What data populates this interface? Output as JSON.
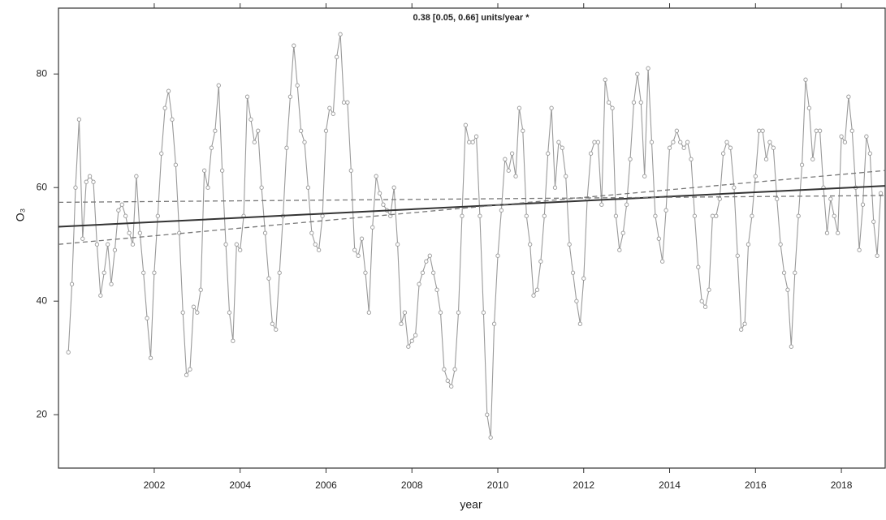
{
  "chart_data": {
    "type": "line",
    "title": "0.38 [0.05, 0.66] units/year *",
    "x_label": "year",
    "y_label": "O₃",
    "color": "#9a9a9a",
    "marker": "circle",
    "xlim": [
      1999.77,
      2019.02
    ],
    "ylim": [
      10.6,
      91.6
    ],
    "xticks": [
      2002,
      2004,
      2006,
      2008,
      2010,
      2012,
      2014,
      2016,
      2018
    ],
    "yticks": [
      20,
      40,
      60,
      80
    ],
    "x": [
      2000,
      2000.083,
      2000.167,
      2000.25,
      2000.333,
      2000.417,
      2000.5,
      2000.583,
      2000.667,
      2000.75,
      2000.833,
      2000.917,
      2001,
      2001.083,
      2001.167,
      2001.25,
      2001.333,
      2001.417,
      2001.5,
      2001.583,
      2001.667,
      2001.75,
      2001.833,
      2001.917,
      2002,
      2002.083,
      2002.167,
      2002.25,
      2002.333,
      2002.417,
      2002.5,
      2002.583,
      2002.667,
      2002.75,
      2002.833,
      2002.917,
      2003,
      2003.083,
      2003.167,
      2003.25,
      2003.333,
      2003.417,
      2003.5,
      2003.583,
      2003.667,
      2003.75,
      2003.833,
      2003.917,
      2004,
      2004.083,
      2004.167,
      2004.25,
      2004.333,
      2004.417,
      2004.5,
      2004.583,
      2004.667,
      2004.75,
      2004.833,
      2004.917,
      2005,
      2005.083,
      2005.167,
      2005.25,
      2005.333,
      2005.417,
      2005.5,
      2005.583,
      2005.667,
      2005.75,
      2005.833,
      2005.917,
      2006,
      2006.083,
      2006.167,
      2006.25,
      2006.333,
      2006.417,
      2006.5,
      2006.583,
      2006.667,
      2006.75,
      2006.833,
      2006.917,
      2007,
      2007.083,
      2007.167,
      2007.25,
      2007.333,
      2007.417,
      2007.5,
      2007.583,
      2007.667,
      2007.75,
      2007.833,
      2007.917,
      2008,
      2008.083,
      2008.167,
      2008.25,
      2008.333,
      2008.417,
      2008.5,
      2008.583,
      2008.667,
      2008.75,
      2008.833,
      2008.917,
      2009,
      2009.083,
      2009.167,
      2009.25,
      2009.333,
      2009.417,
      2009.5,
      2009.583,
      2009.667,
      2009.75,
      2009.833,
      2009.917,
      2010,
      2010.083,
      2010.167,
      2010.25,
      2010.333,
      2010.417,
      2010.5,
      2010.583,
      2010.667,
      2010.75,
      2010.833,
      2010.917,
      2011,
      2011.083,
      2011.167,
      2011.25,
      2011.333,
      2011.417,
      2011.5,
      2011.583,
      2011.667,
      2011.75,
      2011.833,
      2011.917,
      2012,
      2012.083,
      2012.167,
      2012.25,
      2012.333,
      2012.417,
      2012.5,
      2012.583,
      2012.667,
      2012.75,
      2012.833,
      2012.917,
      2013,
      2013.083,
      2013.167,
      2013.25,
      2013.333,
      2013.417,
      2013.5,
      2013.583,
      2013.667,
      2013.75,
      2013.833,
      2013.917,
      2014,
      2014.083,
      2014.167,
      2014.25,
      2014.333,
      2014.417,
      2014.5,
      2014.583,
      2014.667,
      2014.75,
      2014.833,
      2014.917,
      2015,
      2015.083,
      2015.167,
      2015.25,
      2015.333,
      2015.417,
      2015.5,
      2015.583,
      2015.667,
      2015.75,
      2015.833,
      2015.917,
      2016,
      2016.083,
      2016.167,
      2016.25,
      2016.333,
      2016.417,
      2016.5,
      2016.583,
      2016.667,
      2016.75,
      2016.833,
      2016.917,
      2017,
      2017.083,
      2017.167,
      2017.25,
      2017.333,
      2017.417,
      2017.5,
      2017.583,
      2017.667,
      2017.75,
      2017.833,
      2017.917,
      2018,
      2018.083,
      2018.167,
      2018.25,
      2018.333,
      2018.417,
      2018.5,
      2018.583,
      2018.667,
      2018.75,
      2018.833,
      2018.917
    ],
    "values": [
      31,
      43,
      60,
      72,
      51,
      61,
      62,
      61,
      50,
      41,
      45,
      50,
      43,
      49,
      56,
      57,
      55,
      52,
      50,
      62,
      52,
      45,
      37,
      30,
      45,
      55,
      66,
      74,
      77,
      72,
      64,
      52,
      38,
      27,
      28,
      39,
      38,
      42,
      63,
      60,
      67,
      70,
      78,
      63,
      50,
      38,
      33,
      50,
      49,
      55,
      76,
      72,
      68,
      70,
      60,
      52,
      44,
      36,
      35,
      45,
      55,
      67,
      76,
      85,
      78,
      70,
      68,
      60,
      52,
      50,
      49,
      55,
      70,
      74,
      73,
      83,
      87,
      75,
      75,
      63,
      49,
      48,
      51,
      45,
      38,
      53,
      62,
      59,
      57,
      56,
      55,
      60,
      50,
      36,
      38,
      32,
      33,
      34,
      43,
      45,
      47,
      48,
      45,
      42,
      38,
      28,
      26,
      25,
      28,
      38,
      55,
      71,
      68,
      68,
      69,
      55,
      38,
      20,
      16,
      36,
      48,
      56,
      65,
      63,
      66,
      62,
      74,
      70,
      55,
      50,
      41,
      42,
      47,
      55,
      66,
      74,
      60,
      68,
      67,
      62,
      50,
      45,
      40,
      36,
      44,
      58,
      66,
      68,
      68,
      57,
      79,
      75,
      74,
      55,
      49,
      52,
      57,
      65,
      75,
      80,
      75,
      62,
      81,
      68,
      55,
      51,
      47,
      56,
      67,
      68,
      70,
      68,
      67,
      68,
      65,
      55,
      46,
      40,
      39,
      42,
      55,
      55,
      58,
      66,
      68,
      67,
      60,
      48,
      35,
      36,
      50,
      55,
      62,
      70,
      70,
      65,
      68,
      67,
      58,
      50,
      45,
      42,
      32,
      45,
      55,
      64,
      79,
      74,
      65,
      70,
      70,
      60,
      52,
      58,
      55,
      52,
      69,
      68,
      76,
      70,
      60,
      49,
      57,
      69,
      66,
      54,
      48,
      59
    ],
    "trend_lines": [
      {
        "x": [
          1999.77,
          2019.02
        ],
        "values": [
          53.1,
          60.3
        ],
        "style": "solid",
        "color": "#333333"
      },
      {
        "x": [
          1999.77,
          2019.02
        ],
        "values": [
          57.4,
          58.6
        ],
        "style": "dashed",
        "color": "#777777"
      },
      {
        "x": [
          1999.77,
          2019.02
        ],
        "values": [
          50.0,
          63.0
        ],
        "style": "dashed",
        "color": "#777777"
      }
    ]
  }
}
